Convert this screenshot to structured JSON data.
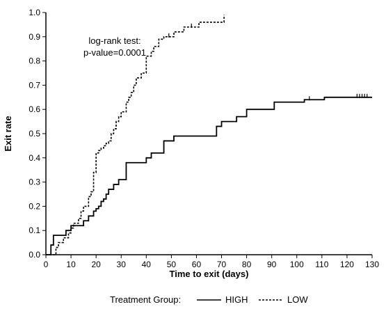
{
  "chart_data": {
    "type": "line",
    "subtype": "kaplan-meier step curves",
    "title": "",
    "xlabel": "Time to exit (days)",
    "ylabel": "Exit rate",
    "xlim": [
      0,
      130
    ],
    "ylim": [
      0,
      1.0
    ],
    "xticks": [
      "0",
      "10",
      "20",
      "30",
      "40",
      "50",
      "60",
      "70",
      "80",
      "90",
      "100",
      "110",
      "120",
      "130"
    ],
    "yticks": [
      "0.0",
      "0.1",
      "0.2",
      "0.3",
      "0.4",
      "0.5",
      "0.6",
      "0.7",
      "0.8",
      "0.9",
      "1.0"
    ],
    "grid": false,
    "annotation": {
      "line1": "log-rank test:",
      "line2": "p-value=0.0001"
    },
    "legend": {
      "title": "Treatment Group:",
      "position": "bottom"
    },
    "series": [
      {
        "name": "HIGH",
        "style": "solid",
        "color": "#000000",
        "x": [
          0,
          2,
          3,
          7,
          8,
          10,
          13,
          15,
          17,
          19,
          20,
          21,
          22,
          23,
          24,
          25,
          27,
          29,
          32,
          37,
          40,
          42,
          47,
          51,
          58,
          68,
          70,
          72,
          76,
          80,
          85,
          91,
          103,
          111,
          130
        ],
        "y": [
          0,
          0.04,
          0.08,
          0.08,
          0.1,
          0.12,
          0.12,
          0.14,
          0.16,
          0.18,
          0.19,
          0.2,
          0.22,
          0.23,
          0.25,
          0.27,
          0.29,
          0.31,
          0.38,
          0.38,
          0.4,
          0.42,
          0.47,
          0.49,
          0.49,
          0.53,
          0.55,
          0.55,
          0.57,
          0.6,
          0.6,
          0.63,
          0.64,
          0.65,
          0.65
        ],
        "censored_x": [
          105,
          124,
          125,
          126,
          127,
          128
        ]
      },
      {
        "name": "LOW",
        "style": "dashed",
        "color": "#000000",
        "x": [
          0,
          4,
          5,
          7,
          9,
          10,
          11,
          13,
          14,
          15,
          17,
          18,
          19,
          20,
          21,
          22,
          23,
          24,
          25,
          26,
          27,
          28,
          29,
          30,
          32,
          33,
          34,
          35,
          36,
          38,
          40,
          42,
          43,
          45,
          47,
          51,
          55,
          61,
          71
        ],
        "y": [
          0,
          0.03,
          0.05,
          0.07,
          0.09,
          0.11,
          0.13,
          0.15,
          0.18,
          0.2,
          0.24,
          0.26,
          0.34,
          0.42,
          0.43,
          0.44,
          0.45,
          0.46,
          0.47,
          0.5,
          0.52,
          0.55,
          0.57,
          0.59,
          0.63,
          0.65,
          0.67,
          0.7,
          0.73,
          0.75,
          0.82,
          0.84,
          0.86,
          0.89,
          0.9,
          0.92,
          0.94,
          0.96,
          0.99
        ],
        "censored_x": [
          49,
          58
        ]
      }
    ]
  }
}
